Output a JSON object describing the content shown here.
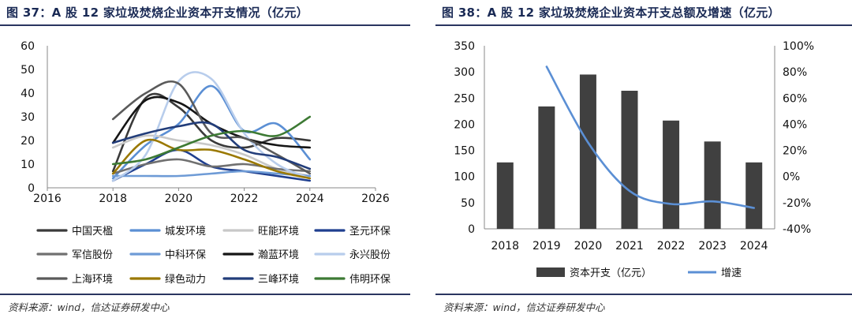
{
  "left": {
    "title": "图 37：A 股 12 家垃圾焚烧企业资本开支情况（亿元）",
    "source": "资料来源：wind，信达证券研发中心"
  },
  "right": {
    "title": "图 38：A 股 12 家垃圾焚烧企业资本开支总额及增速（亿元）",
    "source": "资料来源：wind，信达证券研发中心"
  },
  "chart_data": [
    {
      "type": "line",
      "title": "图 37：A 股 12 家垃圾焚烧企业资本开支情况（亿元）",
      "x": [
        2018,
        2019,
        2020,
        2021,
        2022,
        2023,
        2024
      ],
      "xlim": [
        2016,
        2026
      ],
      "xticks": [
        2016,
        2018,
        2020,
        2022,
        2024,
        2026
      ],
      "ylim": [
        0,
        60
      ],
      "yticks": [
        0,
        10,
        20,
        30,
        40,
        50,
        60
      ],
      "smooth": true,
      "legend_position": "bottom",
      "series": [
        {
          "name": "中国天楹",
          "color": "#3a3a3a",
          "values": [
            7,
            38,
            34,
            20,
            17,
            21,
            20
          ]
        },
        {
          "name": "城发环境",
          "color": "#5b8fd4",
          "values": [
            4,
            18,
            27,
            43,
            24,
            27,
            12
          ]
        },
        {
          "name": "旺能环境",
          "color": "#c8c8c8",
          "values": [
            17,
            22,
            20,
            18,
            14,
            8,
            5
          ]
        },
        {
          "name": "圣元环保",
          "color": "#1f3f8f",
          "values": [
            3,
            10,
            16,
            9,
            7,
            5,
            3
          ]
        },
        {
          "name": "军信股份",
          "color": "#707070",
          "values": [
            6,
            10,
            12,
            9,
            10,
            8,
            7
          ]
        },
        {
          "name": "中科环保",
          "color": "#6e9bd6",
          "values": [
            5,
            5,
            5,
            6,
            7,
            6,
            5
          ]
        },
        {
          "name": "瀚蓝环境",
          "color": "#151515",
          "values": [
            19,
            37,
            36,
            27,
            21,
            18,
            17
          ]
        },
        {
          "name": "永兴股份",
          "color": "#b8cdec",
          "values": [
            3,
            14,
            45,
            46,
            23,
            10,
            4
          ]
        },
        {
          "name": "上海环境",
          "color": "#5a5a5a",
          "values": [
            29,
            40,
            44,
            23,
            21,
            14,
            6
          ]
        },
        {
          "name": "绿色动力",
          "color": "#9a7800",
          "values": [
            6,
            20,
            16,
            16,
            12,
            7,
            4
          ]
        },
        {
          "name": "三峰环境",
          "color": "#223d7a",
          "values": [
            19,
            23,
            26,
            27,
            16,
            13,
            8
          ]
        },
        {
          "name": "伟明环保",
          "color": "#3d7a34",
          "values": [
            10,
            12,
            17,
            22,
            24,
            22,
            30
          ]
        }
      ]
    },
    {
      "type": "bar",
      "title": "图 38：A 股 12 家垃圾焚烧企业资本开支总额及增速（亿元）",
      "categories": [
        "2018",
        "2019",
        "2020",
        "2021",
        "2022",
        "2023",
        "2024"
      ],
      "ylim": [
        0,
        350
      ],
      "yticks": [
        0,
        50,
        100,
        150,
        200,
        250,
        300,
        350
      ],
      "y2lim": [
        -40,
        100
      ],
      "y2ticks": [
        "-40%",
        "-20%",
        "0%",
        "20%",
        "40%",
        "60%",
        "80%",
        "100%"
      ],
      "y2tick_values": [
        -40,
        -20,
        0,
        20,
        40,
        60,
        80,
        100
      ],
      "legend_position": "bottom",
      "series": [
        {
          "name": "资本开支（亿元）",
          "type": "bar",
          "color": "#404040",
          "axis": "left",
          "values": [
            127,
            234,
            295,
            264,
            207,
            167,
            127
          ]
        },
        {
          "name": "增速",
          "type": "line",
          "color": "#5b8fd4",
          "axis": "right",
          "values": [
            null,
            84,
            26,
            -11,
            -21,
            -19,
            -24
          ]
        }
      ]
    }
  ]
}
